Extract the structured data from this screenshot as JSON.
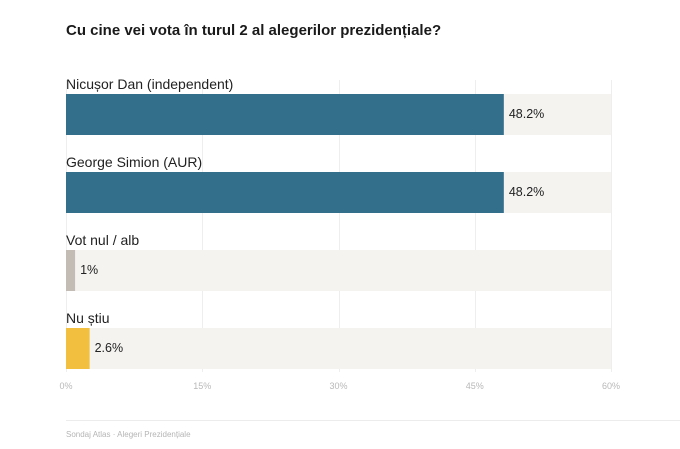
{
  "chart_data": {
    "type": "bar",
    "orientation": "horizontal",
    "title": "Cu cine vei vota în turul 2 al alegerilor prezidențiale?",
    "categories": [
      "Nicușor Dan (independent)",
      "George Simion (AUR)",
      "Vot nul / alb",
      "Nu știu"
    ],
    "values": [
      48.2,
      48.2,
      1,
      2.6
    ],
    "value_labels": [
      "48.2%",
      "48.2%",
      "1%",
      "2.6%"
    ],
    "colors": [
      "#336e8a",
      "#336e8a",
      "#c2bcb5",
      "#f2bf3f"
    ],
    "track_color": "#f4f3f0",
    "xlim": [
      0,
      60
    ],
    "xticks": [
      "0%",
      "15%",
      "30%",
      "45%",
      "60%"
    ],
    "xtick_values": [
      0,
      15,
      30,
      45,
      60
    ],
    "grid": true,
    "legend": "none"
  },
  "footer": {
    "source": "Sondaj Atlas · Alegeri Prezidențiale"
  }
}
